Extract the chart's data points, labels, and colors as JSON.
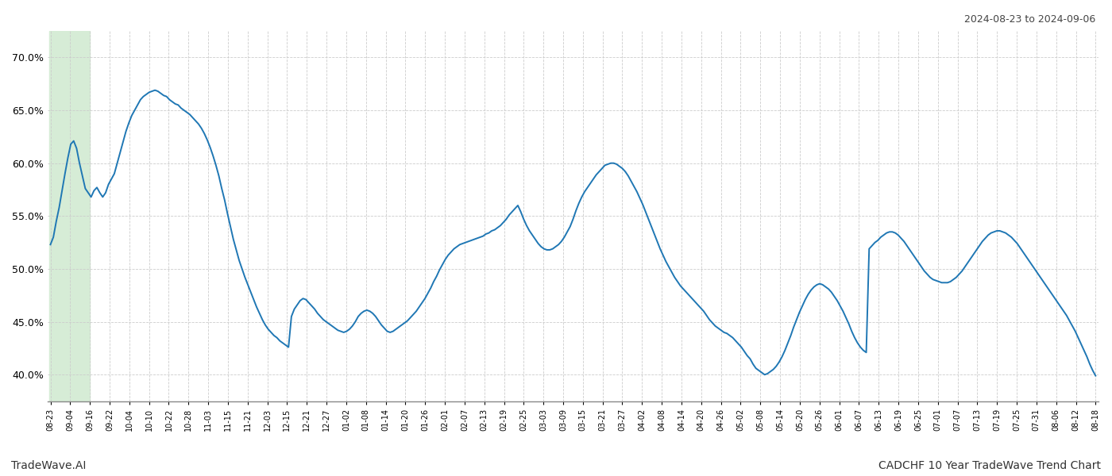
{
  "title_top_right": "2024-08-23 to 2024-09-06",
  "bottom_left": "TradeWave.AI",
  "bottom_right": "CADCHF 10 Year TradeWave Trend Chart",
  "ylim": [
    0.375,
    0.725
  ],
  "yticks": [
    0.4,
    0.45,
    0.5,
    0.55,
    0.6,
    0.65,
    0.7
  ],
  "ytick_labels": [
    "40.0%",
    "45.0%",
    "50.0%",
    "55.0%",
    "60.0%",
    "65.0%",
    "70.0%"
  ],
  "line_color": "#1f77b4",
  "line_width": 1.4,
  "background_color": "#ffffff",
  "grid_color": "#cccccc",
  "highlight_color": "#d6ecd6",
  "x_labels": [
    "08-23",
    "09-04",
    "09-16",
    "09-22",
    "10-04",
    "10-10",
    "10-22",
    "10-28",
    "11-03",
    "11-15",
    "11-21",
    "12-03",
    "12-15",
    "12-21",
    "12-27",
    "01-02",
    "01-08",
    "01-14",
    "01-20",
    "01-26",
    "02-01",
    "02-07",
    "02-13",
    "02-19",
    "02-25",
    "03-03",
    "03-09",
    "03-15",
    "03-21",
    "03-27",
    "04-02",
    "04-08",
    "04-14",
    "04-20",
    "04-26",
    "05-02",
    "05-08",
    "05-14",
    "05-20",
    "05-26",
    "06-01",
    "06-07",
    "06-13",
    "06-19",
    "06-25",
    "07-01",
    "07-07",
    "07-13",
    "07-19",
    "07-25",
    "07-31",
    "08-06",
    "08-12",
    "08-18"
  ],
  "values": [
    0.523,
    0.53,
    0.545,
    0.558,
    0.574,
    0.59,
    0.605,
    0.618,
    0.621,
    0.614,
    0.6,
    0.588,
    0.576,
    0.572,
    0.568,
    0.574,
    0.577,
    0.572,
    0.568,
    0.572,
    0.58,
    0.585,
    0.59,
    0.6,
    0.61,
    0.62,
    0.63,
    0.638,
    0.645,
    0.65,
    0.655,
    0.66,
    0.663,
    0.665,
    0.667,
    0.668,
    0.669,
    0.668,
    0.666,
    0.664,
    0.663,
    0.66,
    0.658,
    0.656,
    0.655,
    0.652,
    0.65,
    0.648,
    0.646,
    0.643,
    0.64,
    0.637,
    0.633,
    0.628,
    0.622,
    0.615,
    0.607,
    0.598,
    0.588,
    0.576,
    0.565,
    0.552,
    0.54,
    0.528,
    0.518,
    0.508,
    0.5,
    0.492,
    0.485,
    0.478,
    0.471,
    0.464,
    0.458,
    0.452,
    0.447,
    0.443,
    0.44,
    0.437,
    0.435,
    0.432,
    0.43,
    0.428,
    0.426,
    0.455,
    0.462,
    0.466,
    0.47,
    0.472,
    0.471,
    0.468,
    0.465,
    0.462,
    0.458,
    0.455,
    0.452,
    0.45,
    0.448,
    0.446,
    0.444,
    0.442,
    0.441,
    0.44,
    0.441,
    0.443,
    0.446,
    0.45,
    0.455,
    0.458,
    0.46,
    0.461,
    0.46,
    0.458,
    0.455,
    0.451,
    0.447,
    0.444,
    0.441,
    0.44,
    0.441,
    0.443,
    0.445,
    0.447,
    0.449,
    0.451,
    0.454,
    0.457,
    0.46,
    0.464,
    0.468,
    0.472,
    0.477,
    0.482,
    0.488,
    0.493,
    0.499,
    0.504,
    0.509,
    0.513,
    0.516,
    0.519,
    0.521,
    0.523,
    0.524,
    0.525,
    0.526,
    0.527,
    0.528,
    0.529,
    0.53,
    0.531,
    0.533,
    0.534,
    0.536,
    0.537,
    0.539,
    0.541,
    0.544,
    0.547,
    0.551,
    0.554,
    0.557,
    0.56,
    0.554,
    0.547,
    0.541,
    0.536,
    0.532,
    0.528,
    0.524,
    0.521,
    0.519,
    0.518,
    0.518,
    0.519,
    0.521,
    0.523,
    0.526,
    0.53,
    0.535,
    0.54,
    0.547,
    0.555,
    0.562,
    0.568,
    0.573,
    0.577,
    0.581,
    0.585,
    0.589,
    0.592,
    0.595,
    0.598,
    0.599,
    0.6,
    0.6,
    0.599,
    0.597,
    0.595,
    0.592,
    0.588,
    0.583,
    0.578,
    0.573,
    0.567,
    0.561,
    0.554,
    0.547,
    0.54,
    0.533,
    0.526,
    0.519,
    0.513,
    0.507,
    0.502,
    0.497,
    0.492,
    0.488,
    0.484,
    0.481,
    0.478,
    0.475,
    0.472,
    0.469,
    0.466,
    0.463,
    0.46,
    0.456,
    0.452,
    0.449,
    0.446,
    0.444,
    0.442,
    0.44,
    0.439,
    0.437,
    0.435,
    0.432,
    0.429,
    0.426,
    0.422,
    0.418,
    0.415,
    0.41,
    0.406,
    0.404,
    0.402,
    0.4,
    0.401,
    0.403,
    0.405,
    0.408,
    0.412,
    0.417,
    0.423,
    0.43,
    0.437,
    0.445,
    0.452,
    0.459,
    0.465,
    0.471,
    0.476,
    0.48,
    0.483,
    0.485,
    0.486,
    0.485,
    0.483,
    0.481,
    0.478,
    0.474,
    0.47,
    0.465,
    0.46,
    0.454,
    0.448,
    0.441,
    0.435,
    0.43,
    0.426,
    0.423,
    0.421,
    0.519,
    0.522,
    0.525,
    0.527,
    0.53,
    0.532,
    0.534,
    0.535,
    0.535,
    0.534,
    0.532,
    0.529,
    0.526,
    0.522,
    0.518,
    0.514,
    0.51,
    0.506,
    0.502,
    0.498,
    0.495,
    0.492,
    0.49,
    0.489,
    0.488,
    0.487,
    0.487,
    0.487,
    0.488,
    0.49,
    0.492,
    0.495,
    0.498,
    0.502,
    0.506,
    0.51,
    0.514,
    0.518,
    0.522,
    0.526,
    0.529,
    0.532,
    0.534,
    0.535,
    0.536,
    0.536,
    0.535,
    0.534,
    0.532,
    0.53,
    0.527,
    0.524,
    0.52,
    0.516,
    0.512,
    0.508,
    0.504,
    0.5,
    0.496,
    0.492,
    0.488,
    0.484,
    0.48,
    0.476,
    0.472,
    0.468,
    0.464,
    0.46,
    0.456,
    0.451,
    0.446,
    0.441,
    0.435,
    0.429,
    0.423,
    0.417,
    0.41,
    0.404,
    0.399
  ]
}
